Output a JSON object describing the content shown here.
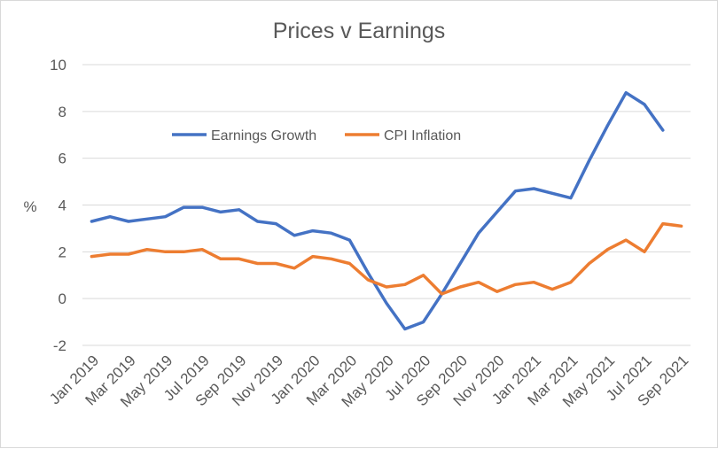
{
  "chart_data": {
    "type": "line",
    "title": "Prices v Earnings",
    "ylabel": "%",
    "xlabel": "",
    "ylim": [
      -2,
      10
    ],
    "yticks": [
      "-2",
      "0",
      "2",
      "4",
      "6",
      "8",
      "10"
    ],
    "grid": true,
    "legend_position": "top-center",
    "x_tick_labels": [
      "Jan 2019",
      "Mar 2019",
      "May 2019",
      "Jul 2019",
      "Sep 2019",
      "Nov 2019",
      "Jan 2020",
      "Mar 2020",
      "May 2020",
      "Jul 2020",
      "Sep 2020",
      "Nov 2020",
      "Jan 2021",
      "Mar 2021",
      "May 2021",
      "Jul 2021",
      "Sep 2021"
    ],
    "x": [
      "Jan 2019",
      "Feb 2019",
      "Mar 2019",
      "Apr 2019",
      "May 2019",
      "Jun 2019",
      "Jul 2019",
      "Aug 2019",
      "Sep 2019",
      "Oct 2019",
      "Nov 2019",
      "Dec 2019",
      "Jan 2020",
      "Feb 2020",
      "Mar 2020",
      "Apr 2020",
      "May 2020",
      "Jun 2020",
      "Jul 2020",
      "Aug 2020",
      "Sep 2020",
      "Oct 2020",
      "Nov 2020",
      "Dec 2020",
      "Jan 2021",
      "Feb 2021",
      "Mar 2021",
      "Apr 2021",
      "May 2021",
      "Jun 2021",
      "Jul 2021",
      "Aug 2021",
      "Sep 2021"
    ],
    "series": [
      {
        "name": "Earnings Growth",
        "color": "#4472c4",
        "values": [
          3.3,
          3.5,
          3.3,
          3.4,
          3.5,
          3.9,
          3.9,
          3.7,
          3.8,
          3.3,
          3.2,
          2.7,
          2.9,
          2.8,
          2.5,
          1.1,
          -0.2,
          -1.3,
          -1.0,
          0.2,
          1.5,
          2.8,
          3.7,
          4.6,
          4.7,
          4.5,
          4.3,
          5.9,
          7.4,
          8.8,
          8.3,
          7.2,
          null
        ]
      },
      {
        "name": "CPI Inflation",
        "color": "#ed7d31",
        "values": [
          1.8,
          1.9,
          1.9,
          2.1,
          2.0,
          2.0,
          2.1,
          1.7,
          1.7,
          1.5,
          1.5,
          1.3,
          1.8,
          1.7,
          1.5,
          0.8,
          0.5,
          0.6,
          1.0,
          0.2,
          0.5,
          0.7,
          0.3,
          0.6,
          0.7,
          0.4,
          0.7,
          1.5,
          2.1,
          2.5,
          2.0,
          3.2,
          3.1
        ]
      }
    ]
  }
}
